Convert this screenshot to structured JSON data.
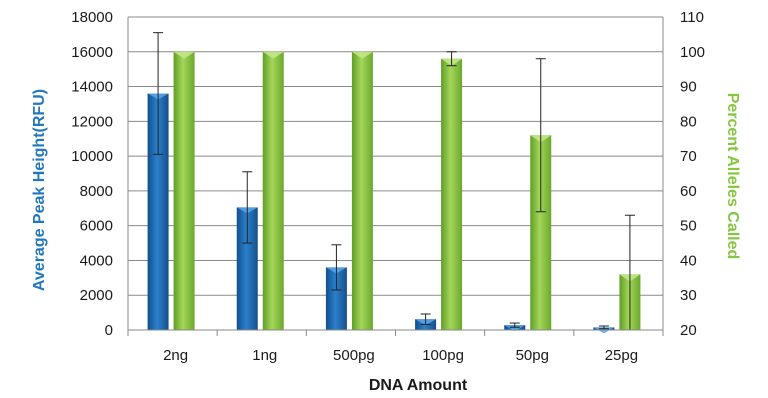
{
  "colors": {
    "peak_bar": "#1f6fb8",
    "peak_bar_light": "#5aa6e6",
    "alleles_bar": "#7fbf3a",
    "alleles_bar_light": "#c3e68a",
    "left_title": "#2277c0",
    "right_title": "#86c640"
  },
  "chart_data": {
    "type": "bar",
    "title": "",
    "xlabel": "DNA Amount",
    "ylabel": "Average Peak Height(RFU)",
    "y2label": "Percent Alleles Called",
    "categories": [
      "2ng",
      "1ng",
      "500pg",
      "100pg",
      "50pg",
      "25pg"
    ],
    "ylim": [
      0,
      18000
    ],
    "yticks": [
      "0",
      "2000",
      "4000",
      "6000",
      "8000",
      "10000",
      "12000",
      "14000",
      "16000",
      "18000"
    ],
    "y2lim": [
      20,
      110
    ],
    "y2ticks": [
      "20",
      "30",
      "40",
      "50",
      "60",
      "70",
      "80",
      "90",
      "100",
      "110"
    ],
    "grid": true,
    "series": [
      {
        "axis": "left",
        "values": [
          13600,
          7050,
          3600,
          620,
          280,
          150
        ],
        "error": [
          3500,
          2050,
          1300,
          300,
          120,
          80
        ]
      },
      {
        "axis": "right",
        "values": [
          100,
          100,
          100,
          98,
          76,
          36
        ],
        "error": [
          0,
          0,
          0,
          2,
          22,
          17
        ]
      }
    ]
  }
}
